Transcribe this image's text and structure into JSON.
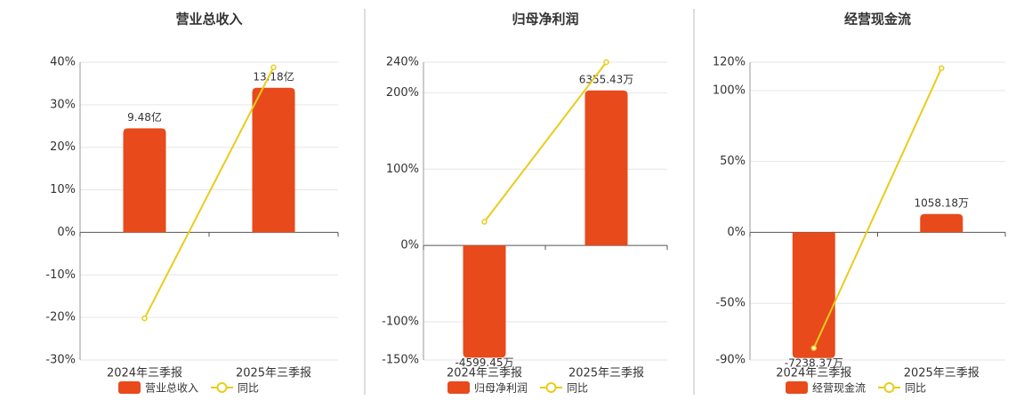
{
  "chart_data": [
    {
      "type": "combo",
      "title": "营业总收入",
      "categories": [
        "2024年三季报",
        "2025年三季报"
      ],
      "series": [
        {
          "name": "营业总收入",
          "color": "#e84a1b",
          "values": [
            9.48,
            13.18
          ],
          "value_labels": [
            "9.48亿",
            "13.18亿"
          ],
          "axis": "y2"
        },
        {
          "name": "同比",
          "color": "#e9cc1c",
          "values": [
            -20.2,
            38.8
          ]
        }
      ],
      "ylim": [
        -30,
        40
      ],
      "yticks": [
        {
          "value": -30,
          "label": "-30%"
        },
        {
          "value": -20,
          "label": "-20%"
        },
        {
          "value": -10,
          "label": "-10%"
        },
        {
          "value": 0,
          "label": "0%"
        },
        {
          "value": 10,
          "label": "10%"
        },
        {
          "value": 20,
          "label": "20%"
        },
        {
          "value": 30,
          "label": "30%"
        },
        {
          "value": 40,
          "label": "40%"
        }
      ],
      "y2lim": [
        -11.63,
        15.51
      ],
      "grid": true
    },
    {
      "type": "combo",
      "title": "归母净利润",
      "categories": [
        "2024年三季报",
        "2025年三季报"
      ],
      "series": [
        {
          "name": "归母净利润",
          "color": "#e84a1b",
          "values": [
            -4599.45,
            6355.43
          ],
          "value_labels": [
            "-4599.45万",
            "6355.43万"
          ],
          "axis": "y2"
        },
        {
          "name": "同比",
          "color": "#e9cc1c",
          "values": [
            31,
            240
          ]
        }
      ],
      "ylim": [
        -150,
        240
      ],
      "yticks": [
        {
          "value": -150,
          "label": "-150%"
        },
        {
          "value": -100,
          "label": "-100%"
        },
        {
          "value": 0,
          "label": "0%"
        },
        {
          "value": 100,
          "label": "100%"
        },
        {
          "value": 200,
          "label": "200%"
        },
        {
          "value": 240,
          "label": "240%"
        }
      ],
      "y2lim": [
        -4696,
        7514
      ],
      "grid": true
    },
    {
      "type": "combo",
      "title": "经营现金流",
      "categories": [
        "2024年三季报",
        "2025年三季报"
      ],
      "series": [
        {
          "name": "经营现金流",
          "color": "#e84a1b",
          "values": [
            -7238.37,
            1058.18
          ],
          "value_labels": [
            "-7238.37万",
            "1058.18万"
          ],
          "axis": "y2"
        },
        {
          "name": "同比",
          "color": "#e9cc1c",
          "values": [
            -81.6,
            115.8
          ]
        }
      ],
      "ylim": [
        -90,
        120
      ],
      "yticks": [
        {
          "value": -90,
          "label": "-90%"
        },
        {
          "value": -50,
          "label": "-50%"
        },
        {
          "value": 0,
          "label": "0%"
        },
        {
          "value": 50,
          "label": "50%"
        },
        {
          "value": 100,
          "label": "100%"
        },
        {
          "value": 120,
          "label": "120%"
        }
      ],
      "y2lim": [
        -7353,
        9804
      ],
      "grid": true
    }
  ]
}
